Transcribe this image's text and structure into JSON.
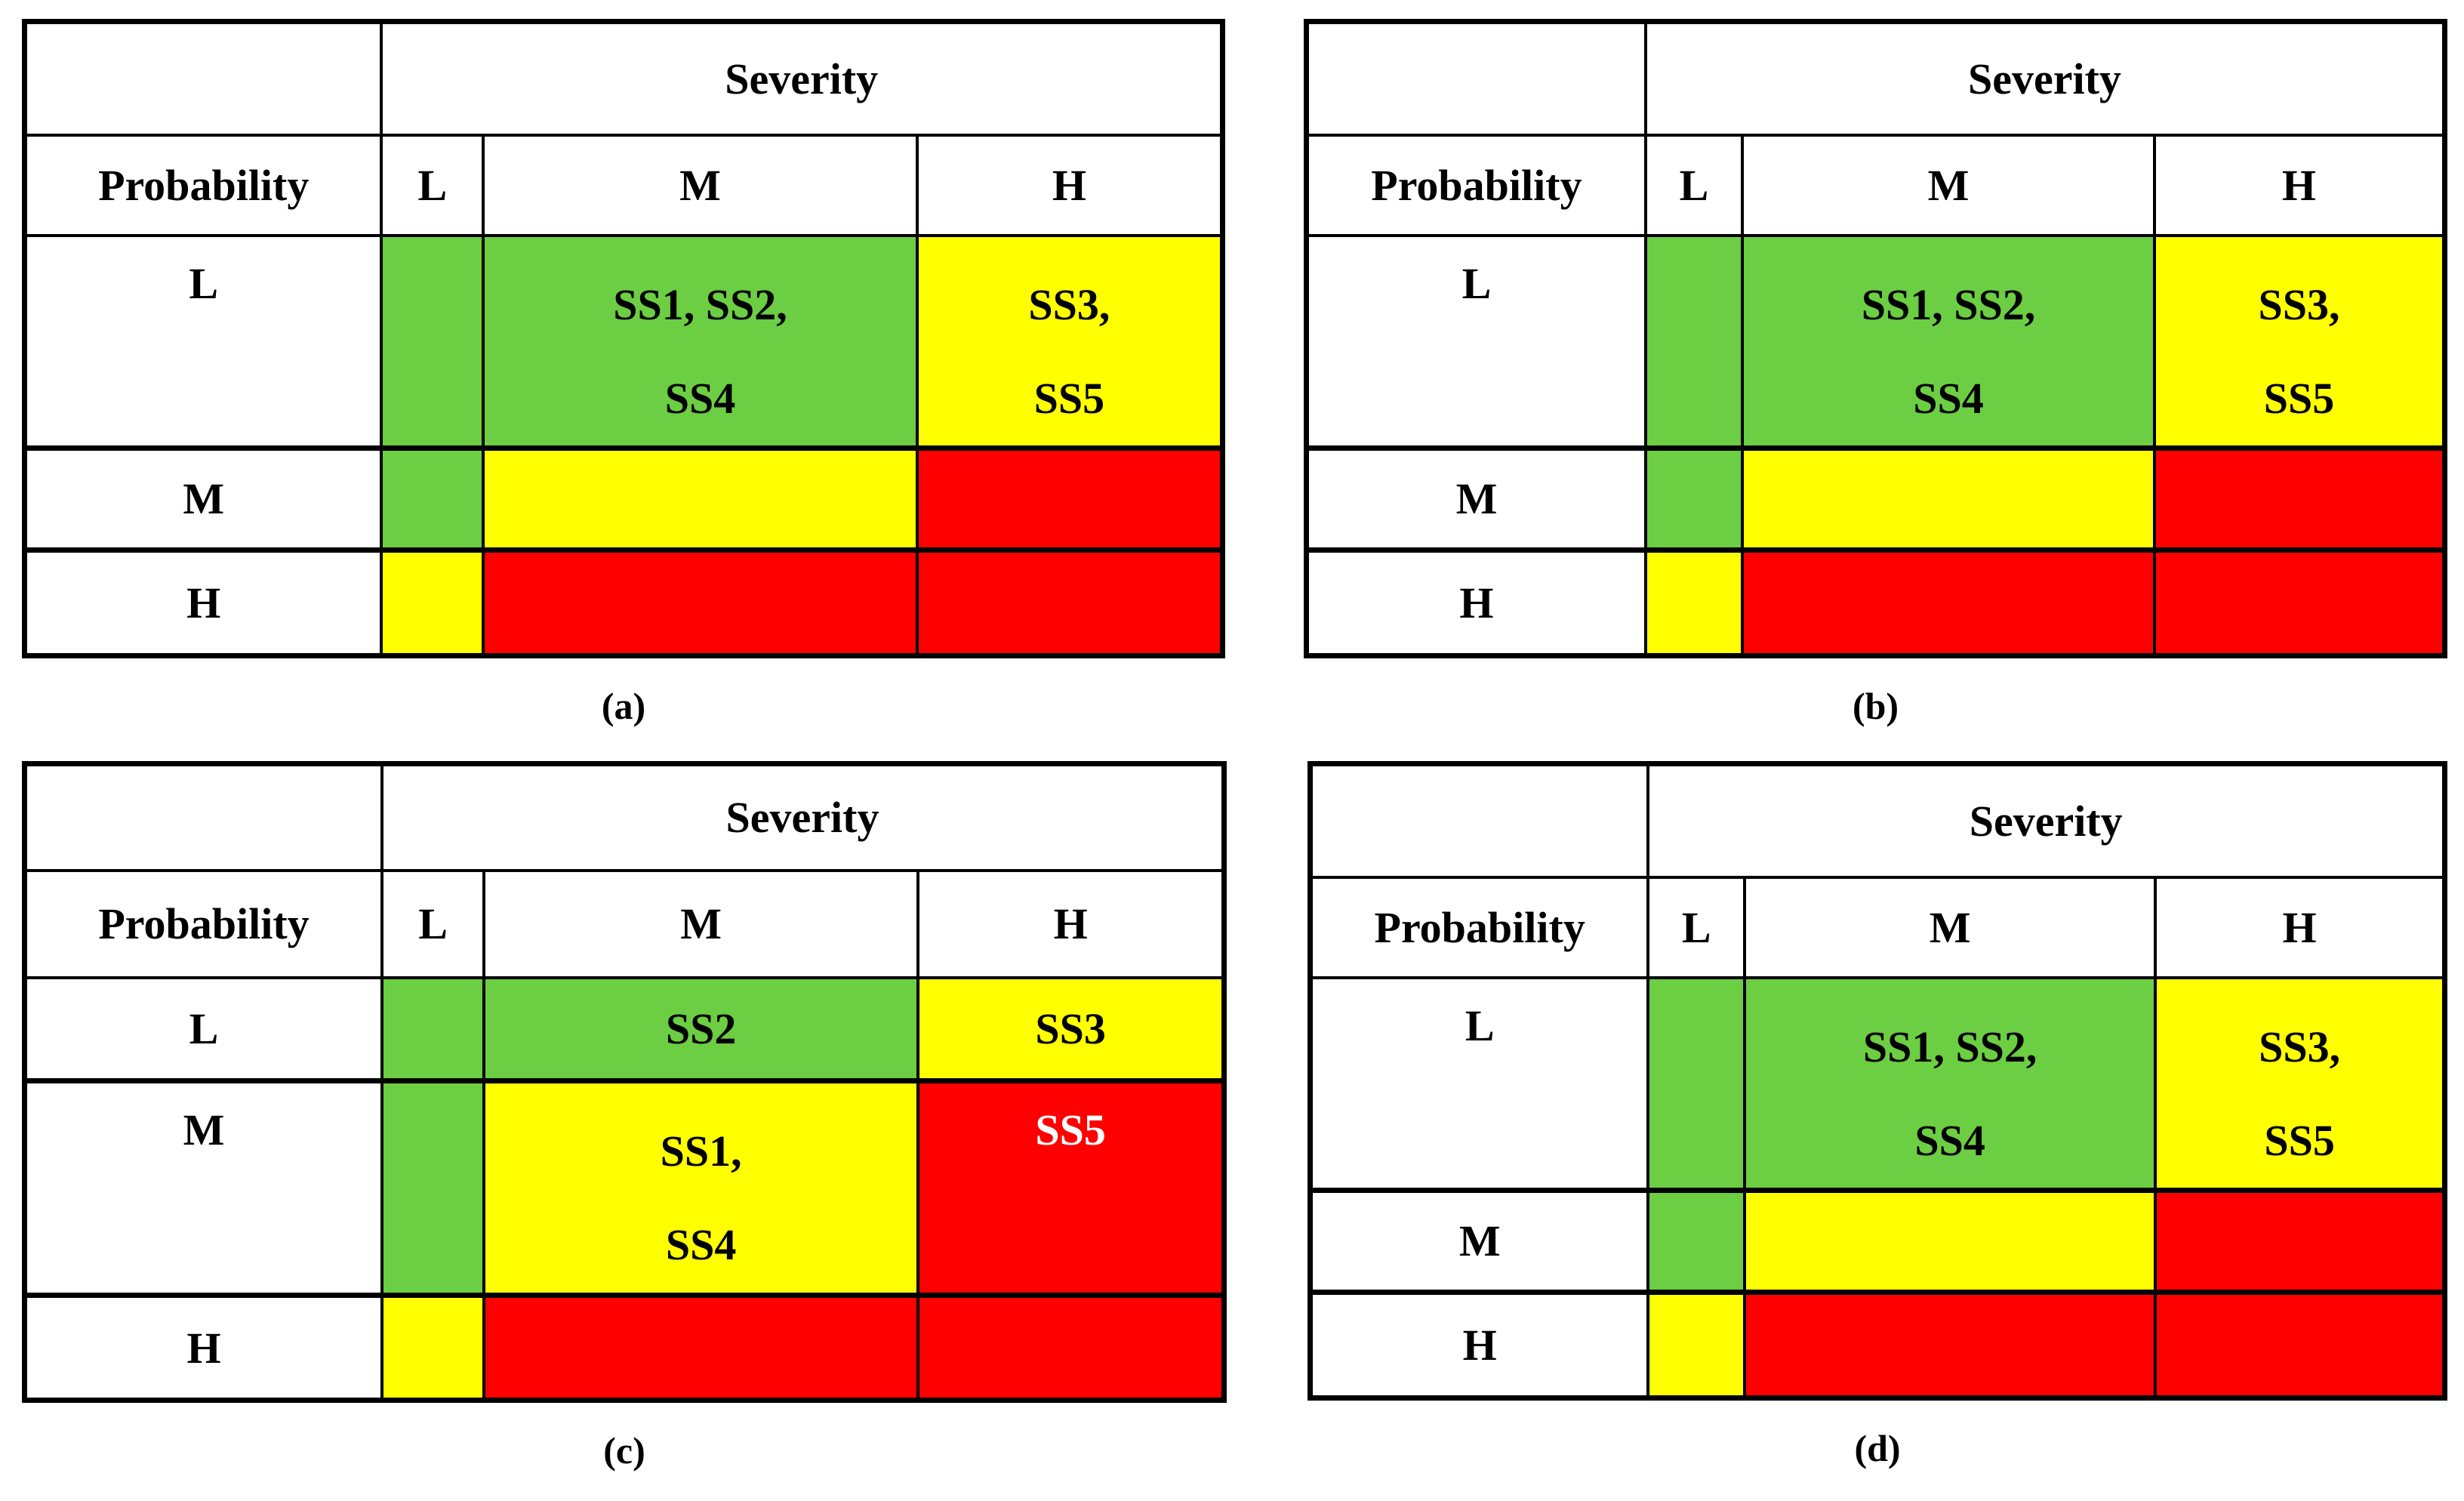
{
  "colors": {
    "green": "#6CCE42",
    "yellow": "#FFFF00",
    "red": "#FF0000",
    "border": "#000000",
    "text": "#000000",
    "inverse_text": "#FFFFFF",
    "background": "#FFFFFF"
  },
  "matrices": {
    "a": {
      "caption": "(a)",
      "severity_label": "Severity",
      "probability_label": "Probability",
      "col_headers": {
        "l": "L",
        "m": "M",
        "h": "H"
      },
      "row_labels": {
        "l": "L",
        "m": "M",
        "h": "H"
      },
      "cells": {
        "l_l": {
          "color": "green"
        },
        "l_m": {
          "color": "green",
          "line1": "SS1, SS2,",
          "line2": "SS4"
        },
        "l_h": {
          "color": "yellow",
          "line1": "SS3,",
          "line2": "SS5"
        },
        "m_l": {
          "color": "green"
        },
        "m_m": {
          "color": "yellow"
        },
        "m_h": {
          "color": "red"
        },
        "h_l": {
          "color": "yellow"
        },
        "h_m": {
          "color": "red"
        },
        "h_h": {
          "color": "red"
        }
      }
    },
    "b": {
      "caption": "(b)",
      "severity_label": "Severity",
      "probability_label": "Probability",
      "col_headers": {
        "l": "L",
        "m": "M",
        "h": "H"
      },
      "row_labels": {
        "l": "L",
        "m": "M",
        "h": "H"
      },
      "cells": {
        "l_l": {
          "color": "green"
        },
        "l_m": {
          "color": "green",
          "line1": "SS1, SS2,",
          "line2": "SS4"
        },
        "l_h": {
          "color": "yellow",
          "line1": "SS3,",
          "line2": "SS5"
        },
        "m_l": {
          "color": "green"
        },
        "m_m": {
          "color": "yellow"
        },
        "m_h": {
          "color": "red"
        },
        "h_l": {
          "color": "yellow"
        },
        "h_m": {
          "color": "red"
        },
        "h_h": {
          "color": "red"
        }
      }
    },
    "c": {
      "caption": "(c)",
      "severity_label": "Severity",
      "probability_label": "Probability",
      "col_headers": {
        "l": "L",
        "m": "M",
        "h": "H"
      },
      "row_labels": {
        "l": "L",
        "m": "M",
        "h": "H"
      },
      "cells": {
        "l_l": {
          "color": "green"
        },
        "l_m": {
          "color": "green",
          "text": "SS2"
        },
        "l_h": {
          "color": "yellow",
          "text": "SS3"
        },
        "m_l": {
          "color": "green"
        },
        "m_m": {
          "color": "yellow",
          "line1": "SS1,",
          "line2": "SS4"
        },
        "m_h": {
          "color": "red",
          "text": "SS5",
          "ink": "white"
        },
        "h_l": {
          "color": "yellow"
        },
        "h_m": {
          "color": "red"
        },
        "h_h": {
          "color": "red"
        }
      }
    },
    "d": {
      "caption": "(d)",
      "severity_label": "Severity",
      "probability_label": "Probability",
      "col_headers": {
        "l": "L",
        "m": "M",
        "h": "H"
      },
      "row_labels": {
        "l": "L",
        "m": "M",
        "h": "H"
      },
      "cells": {
        "l_l": {
          "color": "green"
        },
        "l_m": {
          "color": "green",
          "line1": "SS1, SS2,",
          "line2": "SS4"
        },
        "l_h": {
          "color": "yellow",
          "line1": "SS3,",
          "line2": "SS5"
        },
        "m_l": {
          "color": "green"
        },
        "m_m": {
          "color": "yellow"
        },
        "m_h": {
          "color": "red"
        },
        "h_l": {
          "color": "yellow"
        },
        "h_m": {
          "color": "red"
        },
        "h_h": {
          "color": "red"
        }
      }
    }
  }
}
